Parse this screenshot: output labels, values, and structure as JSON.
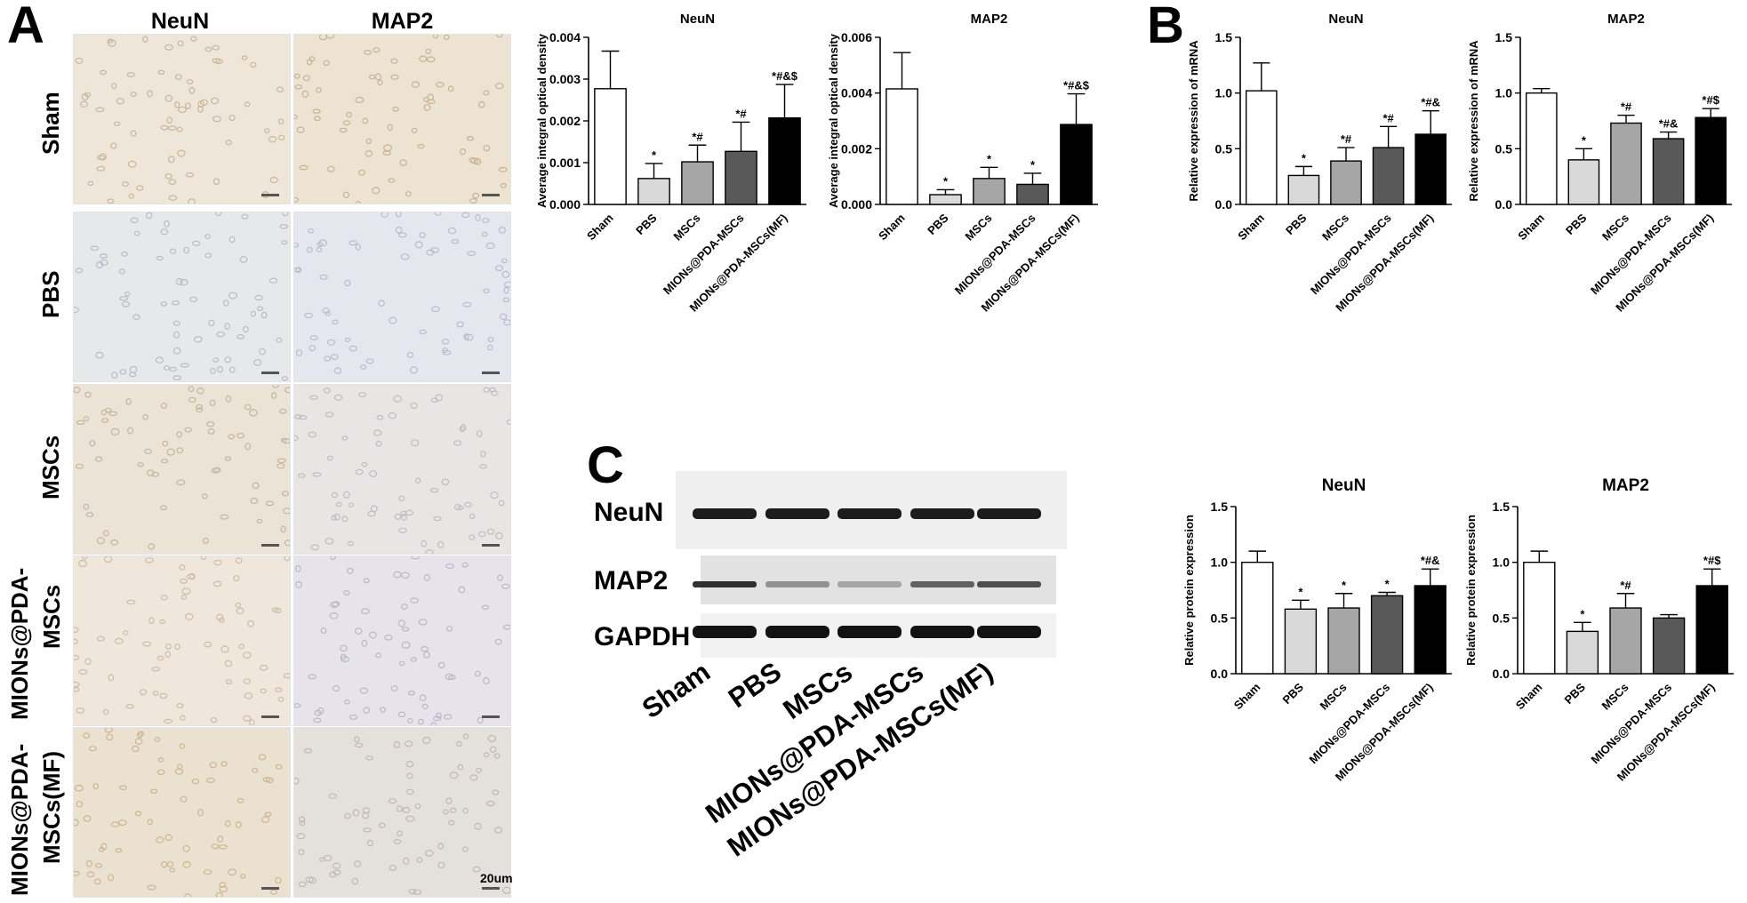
{
  "panels": {
    "A": "A",
    "B": "B",
    "C": "C"
  },
  "histology": {
    "columns": [
      "NeuN",
      "MAP2"
    ],
    "rows": [
      {
        "label": "Sham"
      },
      {
        "label": "PBS"
      },
      {
        "label": "MSCs"
      },
      {
        "label": "MIONs@PDA-\nMSCs",
        "line1": "MIONs@PDA-",
        "line2": "MSCs"
      },
      {
        "label": "MIONs@PDA-\nMSCs(MF)",
        "line1": "MIONs@PDA-",
        "line2": "MSCs(MF)"
      }
    ],
    "scale_bar": "20um"
  },
  "western": {
    "row_labels": [
      "NeuN",
      "MAP2",
      "GAPDH"
    ],
    "lanes": [
      "Sham",
      "PBS",
      "MSCs",
      "MIONs@PDA-MSCs",
      "MIONs@PDA-MSCs(MF)"
    ]
  },
  "colors": {
    "Sham": "#ffffff",
    "PBS": "#d9d9d9",
    "MSCs": "#a6a6a6",
    "MIONs@PDA-MSCs": "#595959",
    "MIONs@PDA-MSCs(MF)": "#000000"
  },
  "chart_data": [
    {
      "id": "A-NeuN",
      "type": "bar",
      "title": "NeuN",
      "ylabel": "Average integral optical density",
      "categories": [
        "Sham",
        "PBS",
        "MSCs",
        "MIONs@PDA-MSCs",
        "MIONs@PDA-MSCs(MF)"
      ],
      "values": [
        0.00277,
        0.00062,
        0.00102,
        0.00127,
        0.00207
      ],
      "errors": [
        0.0009,
        0.00036,
        0.0004,
        0.0007,
        0.0008
      ],
      "annotations": [
        "",
        "*",
        "*#",
        "*#",
        "*#&$"
      ],
      "ylim": [
        0,
        0.004
      ],
      "yticks": [
        "0.000",
        "0.001",
        "0.002",
        "0.003",
        "0.004"
      ]
    },
    {
      "id": "A-MAP2",
      "type": "bar",
      "title": "MAP2",
      "ylabel": "Average integral optical density",
      "categories": [
        "Sham",
        "PBS",
        "MSCs",
        "MIONs@PDA-MSCs",
        "MIONs@PDA-MSCs(MF)"
      ],
      "values": [
        0.00415,
        0.00035,
        0.00093,
        0.00072,
        0.00287
      ],
      "errors": [
        0.0013,
        0.00018,
        0.0004,
        0.0004,
        0.0011
      ],
      "annotations": [
        "",
        "*",
        "*",
        "*",
        "*#&$"
      ],
      "ylim": [
        0,
        0.006
      ],
      "yticks": [
        "0.000",
        "0.002",
        "0.004",
        "0.006"
      ]
    },
    {
      "id": "B-NeuN",
      "type": "bar",
      "title": "NeuN",
      "ylabel": "Relative expression of mRNA",
      "categories": [
        "Sham",
        "PBS",
        "MSCs",
        "MIONs@PDA-MSCs",
        "MIONs@PDA-MSCs(MF)"
      ],
      "values": [
        1.02,
        0.26,
        0.39,
        0.51,
        0.63
      ],
      "errors": [
        0.25,
        0.08,
        0.12,
        0.19,
        0.21
      ],
      "annotations": [
        "",
        "*",
        "*#",
        "*#",
        "*#&"
      ],
      "ylim": [
        0,
        1.5
      ],
      "yticks": [
        "0.0",
        "0.5",
        "1.0",
        "1.5"
      ]
    },
    {
      "id": "B-MAP2",
      "type": "bar",
      "title": "MAP2",
      "ylabel": "Relative expression of mRNA",
      "categories": [
        "Sham",
        "PBS",
        "MSCs",
        "MIONs@PDA-MSCs",
        "MIONs@PDA-MSCs(MF)"
      ],
      "values": [
        1.0,
        0.4,
        0.73,
        0.59,
        0.78
      ],
      "errors": [
        0.04,
        0.1,
        0.07,
        0.06,
        0.08
      ],
      "annotations": [
        "",
        "*",
        "*#",
        "*#&",
        "*#$"
      ],
      "ylim": [
        0,
        1.5
      ],
      "yticks": [
        "0.0",
        "0.5",
        "1.0",
        "1.5"
      ]
    },
    {
      "id": "C-NeuN",
      "type": "bar",
      "title": "NeuN",
      "ylabel": "Relative protein expression",
      "categories": [
        "Sham",
        "PBS",
        "MSCs",
        "MIONs@PDA-MSCs",
        "MIONs@PDA-MSCs(MF)"
      ],
      "values": [
        1.0,
        0.58,
        0.59,
        0.7,
        0.79
      ],
      "errors": [
        0.1,
        0.08,
        0.13,
        0.03,
        0.15
      ],
      "annotations": [
        "",
        "*",
        "*",
        "*",
        "*#&"
      ],
      "ylim": [
        0,
        1.5
      ],
      "yticks": [
        "0.0",
        "0.5",
        "1.0",
        "1.5"
      ]
    },
    {
      "id": "C-MAP2",
      "type": "bar",
      "title": "MAP2",
      "ylabel": "Relative protein expression",
      "categories": [
        "Sham",
        "PBS",
        "MSCs",
        "MIONs@PDA-MSCs",
        "MIONs@PDA-MSCs(MF)"
      ],
      "values": [
        1.0,
        0.38,
        0.59,
        0.5,
        0.79
      ],
      "errors": [
        0.1,
        0.08,
        0.13,
        0.03,
        0.15
      ],
      "annotations": [
        "",
        "*",
        "*#",
        "",
        "*#$"
      ],
      "ylim": [
        0,
        1.5
      ],
      "yticks": [
        "0.0",
        "0.5",
        "1.0",
        "1.5"
      ]
    }
  ]
}
